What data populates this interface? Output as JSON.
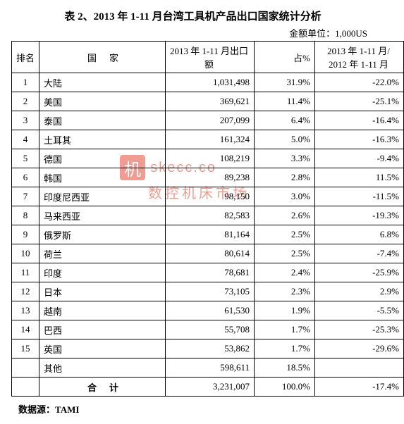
{
  "title": "表 2、2013 年 1-11 月台湾工具机产品出口国家统计分析",
  "unit_label": "金额单位：1,000US",
  "columns": {
    "rank": "排名",
    "country": "国家",
    "export": "2013 年 1-11 月出口额",
    "pct": "占%",
    "yoy": "2013 年 1-11 月/ 2012 年 1-11 月"
  },
  "rows": [
    {
      "rank": "1",
      "country": "大陆",
      "export": "1,031,498",
      "pct": "31.9%",
      "yoy": "-22.0%"
    },
    {
      "rank": "2",
      "country": "美国",
      "export": "369,621",
      "pct": "11.4%",
      "yoy": "-25.1%"
    },
    {
      "rank": "3",
      "country": "泰国",
      "export": "207,099",
      "pct": "6.4%",
      "yoy": "-16.4%"
    },
    {
      "rank": "4",
      "country": "土耳其",
      "export": "161,324",
      "pct": "5.0%",
      "yoy": "-16.3%"
    },
    {
      "rank": "5",
      "country": "德国",
      "export": "108,219",
      "pct": "3.3%",
      "yoy": "-9.4%"
    },
    {
      "rank": "6",
      "country": "韩国",
      "export": "89,238",
      "pct": "2.8%",
      "yoy": "11.5%"
    },
    {
      "rank": "7",
      "country": "印度尼西亚",
      "export": "98,150",
      "pct": "3.0%",
      "yoy": "-11.5%"
    },
    {
      "rank": "8",
      "country": "马来西亚",
      "export": "82,583",
      "pct": "2.6%",
      "yoy": "-19.3%"
    },
    {
      "rank": "9",
      "country": "俄罗斯",
      "export": "81,164",
      "pct": "2.5%",
      "yoy": "6.8%"
    },
    {
      "rank": "10",
      "country": "荷兰",
      "export": "80,614",
      "pct": "2.5%",
      "yoy": "-7.4%"
    },
    {
      "rank": "11",
      "country": "印度",
      "export": "78,681",
      "pct": "2.4%",
      "yoy": "-25.9%"
    },
    {
      "rank": "12",
      "country": "日本",
      "export": "73,105",
      "pct": "2.3%",
      "yoy": "2.9%"
    },
    {
      "rank": "13",
      "country": "越南",
      "export": "61,530",
      "pct": "1.9%",
      "yoy": "-5.5%"
    },
    {
      "rank": "14",
      "country": "巴西",
      "export": "55,708",
      "pct": "1.7%",
      "yoy": "-25.3%"
    },
    {
      "rank": "15",
      "country": "英国",
      "export": "53,862",
      "pct": "1.7%",
      "yoy": "-29.6%"
    },
    {
      "rank": "",
      "country": "其他",
      "export": "598,611",
      "pct": "18.5%",
      "yoy": ""
    }
  ],
  "total": {
    "label": "合计",
    "export": "3,231,007",
    "pct": "100.0%",
    "yoy": "-17.4%"
  },
  "source": "数据源：TAMI",
  "watermark": {
    "box": "机",
    "line1": "skecc.co",
    "line2": "数控机床市场"
  }
}
